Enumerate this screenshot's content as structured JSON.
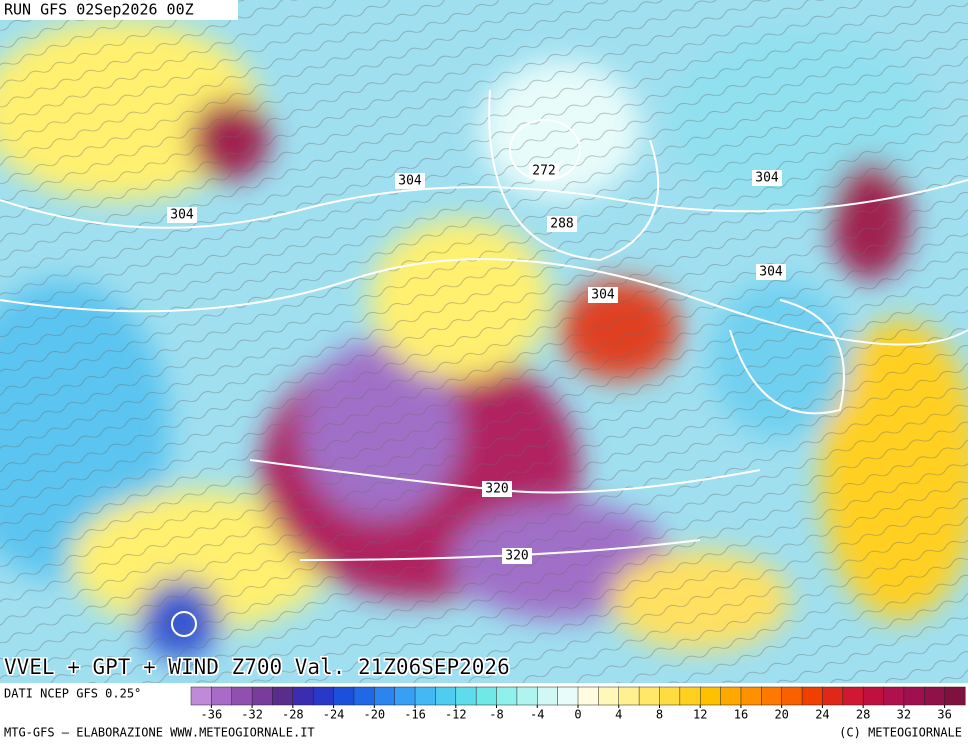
{
  "header": {
    "run": "RUN GFS 02Sep2026 00Z"
  },
  "map": {
    "title": "VVEL + GPT + WIND Z700 Val. 21Z06SEP2026",
    "contour_labels": [
      304,
      304,
      272,
      288,
      304,
      304,
      304,
      320,
      320
    ]
  },
  "footer": {
    "source": "DATI NCEP GFS 0.25°",
    "credit": "MTG-GFS — ELABORAZIONE WWW.METEOGIORNALE.IT",
    "copyright": "(C) METEOGIORNALE"
  },
  "colorbar": {
    "lim": [
      -38,
      38
    ],
    "ticks": [
      -36,
      -32,
      -28,
      -24,
      -20,
      -16,
      -12,
      -8,
      -4,
      0,
      4,
      8,
      12,
      16,
      20,
      24,
      28,
      32,
      36
    ],
    "colors": [
      "#c08ad8",
      "#a86cc8",
      "#9050b0",
      "#7a3c9c",
      "#5a2c8c",
      "#3c2cb0",
      "#2838c8",
      "#1c50dc",
      "#2068e8",
      "#2c84f0",
      "#38a0f4",
      "#44b8f4",
      "#50ccf0",
      "#5cdcec",
      "#70e8e8",
      "#90f0ec",
      "#b0f4f0",
      "#d0f8f4",
      "#e8fcfa",
      "#fffce0",
      "#fff8b8",
      "#fff090",
      "#ffe868",
      "#ffdc40",
      "#ffd020",
      "#ffc000",
      "#ffa800",
      "#ff9000",
      "#ff7800",
      "#f86000",
      "#f04000",
      "#e02818",
      "#d01830",
      "#c01040",
      "#b0104c",
      "#a01050",
      "#901048",
      "#801040"
    ]
  }
}
